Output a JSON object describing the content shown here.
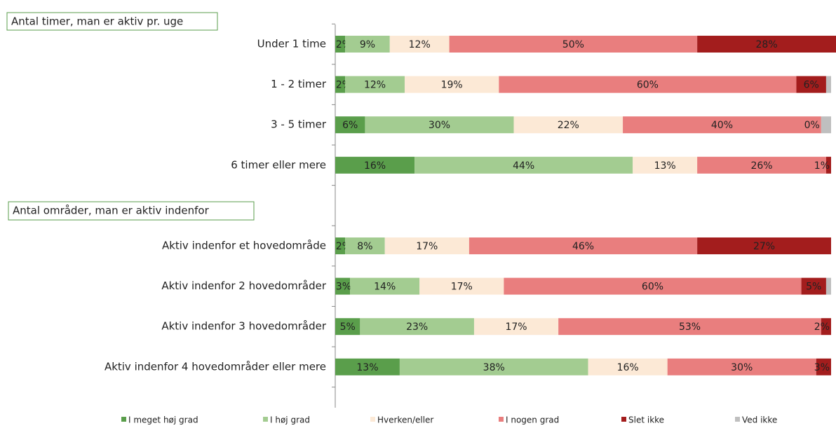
{
  "chart_data": {
    "type": "stacked-bar-horizontal",
    "annotations": [
      "Antal timer, man er aktiv pr. uge",
      "Antal områder, man er aktiv indenfor"
    ],
    "categories": [
      "Under 1 time",
      "1 - 2  timer",
      "3 - 5 timer",
      "6 timer eller mere",
      null,
      "Aktiv indenfor et hovedområde",
      "Aktiv indenfor 2 hovedområder",
      "Aktiv indenfor 3 hovedområder",
      "Aktiv indenfor 4 hovedområder eller mere"
    ],
    "xlim": [
      0,
      100
    ],
    "series": [
      {
        "name": "I meget høj grad",
        "color": "#5a9e4b",
        "values": [
          2,
          2,
          6,
          16,
          null,
          2,
          3,
          5,
          13
        ],
        "value_labels": [
          "2%",
          "2%",
          "6%",
          "16%",
          null,
          "2%",
          "3%",
          "5%",
          "13%"
        ]
      },
      {
        "name": "I høj grad",
        "color": "#a3cc91",
        "values": [
          9,
          12,
          30,
          44,
          null,
          8,
          14,
          23,
          38
        ],
        "value_labels": [
          "9%",
          "12%",
          "30%",
          "44%",
          null,
          "8%",
          "14%",
          "23%",
          "38%"
        ]
      },
      {
        "name": "Hverken/eller",
        "color": "#fce9d6",
        "values": [
          12,
          19,
          22,
          13,
          null,
          17,
          17,
          17,
          16
        ],
        "value_labels": [
          "12%",
          "19%",
          "22%",
          "13%",
          null,
          "17%",
          "17%",
          "17%",
          "16%"
        ]
      },
      {
        "name": "I nogen grad",
        "color": "#e97e7e",
        "values": [
          50,
          60,
          40,
          26,
          null,
          46,
          60,
          53,
          30
        ],
        "value_labels": [
          "50%",
          "60%",
          "40%",
          "26%",
          null,
          "46%",
          "60%",
          "53%",
          "30%"
        ]
      },
      {
        "name": "Slet ikke",
        "color": "#a31d1d",
        "values": [
          28,
          6,
          0,
          1,
          null,
          27,
          5,
          2,
          3
        ],
        "value_labels": [
          "28%",
          "6%",
          "0%",
          "1%",
          null,
          "27%",
          "5%",
          "2%",
          "3%"
        ]
      },
      {
        "name": "Ved ikke",
        "color": "#bfbfbf",
        "values": [
          0,
          1,
          2,
          0,
          null,
          0,
          1,
          0,
          0
        ]
      }
    ]
  }
}
